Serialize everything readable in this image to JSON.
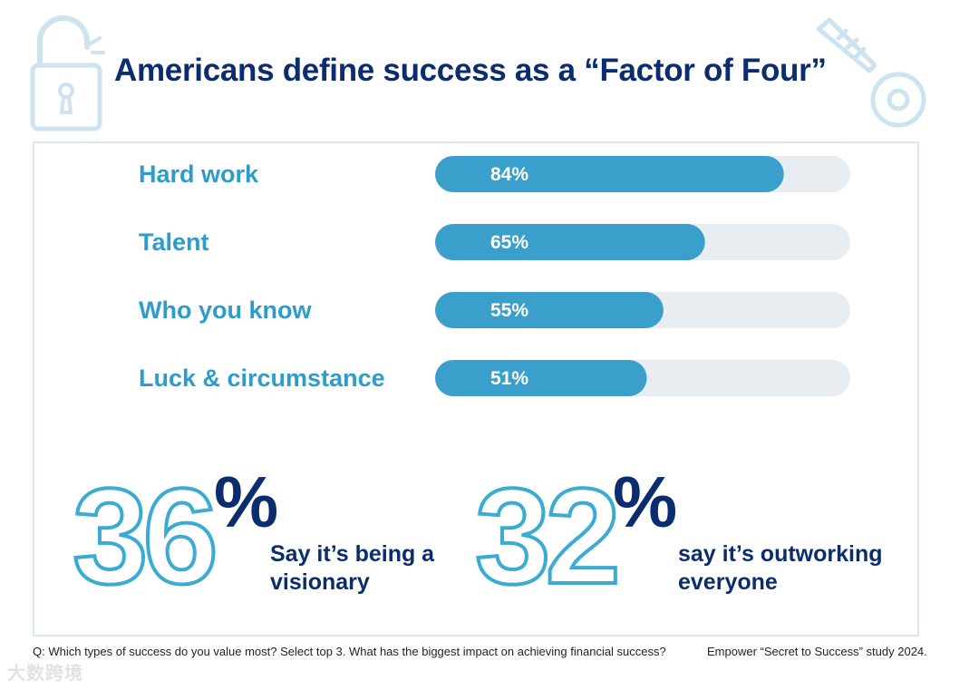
{
  "title": "Americans define success as a “Factor of Four”",
  "icons": {
    "lock": "unlocked-padlock-icon",
    "key": "key-icon"
  },
  "colors": {
    "bar": "#3a9fcb",
    "track": "#e8edf1",
    "title": "#0b2d6e",
    "category": "#2e9ccb",
    "outline_number": "#3aabd3"
  },
  "chart_data": {
    "type": "bar",
    "orientation": "horizontal",
    "title": "Americans define success as a “Factor of Four”",
    "categories": [
      "Hard work",
      "Talent",
      "Who you know",
      "Luck & circumstance"
    ],
    "values": [
      84,
      65,
      55,
      51
    ],
    "value_labels": [
      "84%",
      "65%",
      "55%",
      "51%"
    ],
    "xlim": [
      0,
      100
    ],
    "unit": "%"
  },
  "stats": [
    {
      "number": "36",
      "percent": "%",
      "text_line1": "Say it’s being a",
      "text_line2": "visionary"
    },
    {
      "number": "32",
      "percent": "%",
      "text_line1": "say it’s outworking",
      "text_line2": "everyone"
    }
  ],
  "footnote": {
    "question": "Q: Which types of success do you value most? Select top 3.  What has the biggest impact on achieving financial success?",
    "source": "Empower “Secret to Success” study 2024."
  },
  "watermark": "大数跨境"
}
